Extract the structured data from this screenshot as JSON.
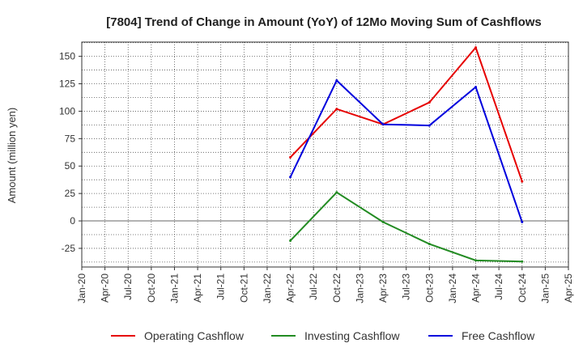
{
  "chart_data": {
    "type": "line",
    "title": "[7804]  Trend of Change in Amount (YoY) of 12Mo Moving Sum of Cashflows",
    "ylabel": "Amount (million yen)",
    "xlabel": "",
    "ylim": [
      -42,
      163
    ],
    "yticks": [
      150,
      125,
      100,
      75,
      50,
      25,
      0,
      -25
    ],
    "categories": [
      "Jan-20",
      "Apr-20",
      "Jul-20",
      "Oct-20",
      "Jan-21",
      "Apr-21",
      "Jul-21",
      "Oct-21",
      "Jan-22",
      "Apr-22",
      "Jul-22",
      "Oct-22",
      "Jan-23",
      "Apr-23",
      "Jul-23",
      "Oct-23",
      "Jan-24",
      "Apr-24",
      "Jul-24",
      "Oct-24",
      "Jan-25",
      "Apr-25"
    ],
    "grid": true,
    "legend_position": "bottom",
    "series": [
      {
        "name": "Operating Cashflow",
        "color": "#e60000",
        "points": [
          {
            "x": "Apr-22",
            "y": 58
          },
          {
            "x": "Oct-22",
            "y": 102
          },
          {
            "x": "Apr-23",
            "y": 88
          },
          {
            "x": "Oct-23",
            "y": 108
          },
          {
            "x": "Apr-24",
            "y": 158
          },
          {
            "x": "Oct-24",
            "y": 36
          }
        ]
      },
      {
        "name": "Investing Cashflow",
        "color": "#228b22",
        "points": [
          {
            "x": "Apr-22",
            "y": -18
          },
          {
            "x": "Oct-22",
            "y": 26
          },
          {
            "x": "Apr-23",
            "y": -1
          },
          {
            "x": "Oct-23",
            "y": -21
          },
          {
            "x": "Apr-24",
            "y": -36
          },
          {
            "x": "Oct-24",
            "y": -37
          }
        ]
      },
      {
        "name": "Free Cashflow",
        "color": "#0000dd",
        "points": [
          {
            "x": "Apr-22",
            "y": 40
          },
          {
            "x": "Oct-22",
            "y": 128
          },
          {
            "x": "Apr-23",
            "y": 88
          },
          {
            "x": "Oct-23",
            "y": 87
          },
          {
            "x": "Apr-24",
            "y": 122
          },
          {
            "x": "Oct-24",
            "y": -1
          }
        ]
      }
    ]
  }
}
